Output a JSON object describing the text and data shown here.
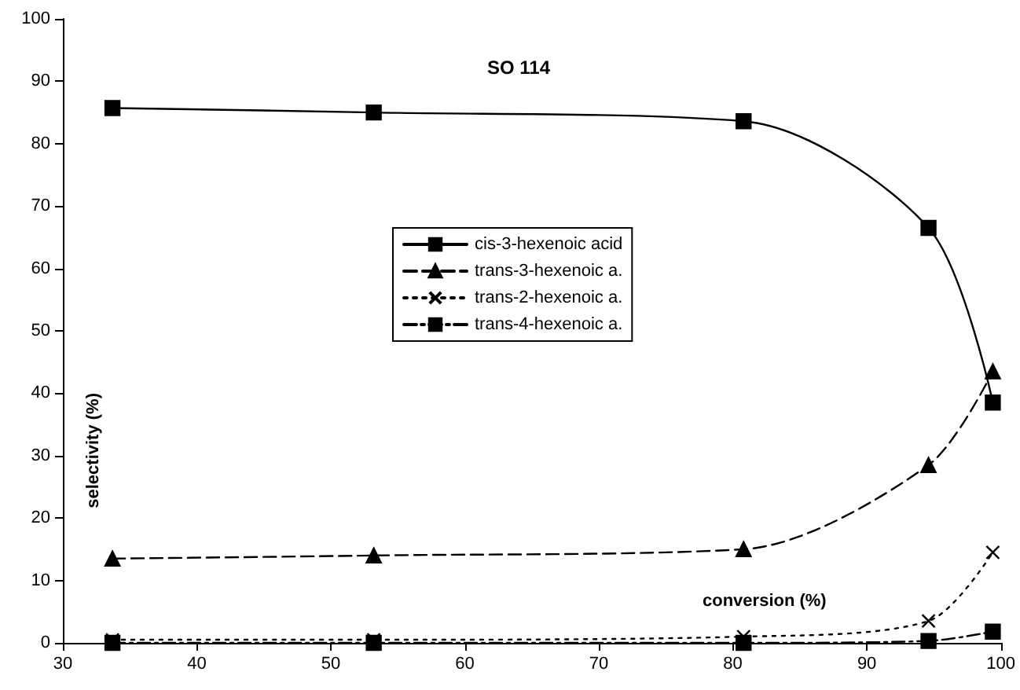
{
  "chart_data": {
    "type": "line",
    "title": "SO 114",
    "xlabel": "conversion (%)",
    "ylabel": "selectivity (%)",
    "x": [
      33.7,
      53.2,
      80.8,
      94.6,
      99.4
    ],
    "series": [
      {
        "name": "cis-3-hexenoic acid",
        "color": "#000000",
        "marker": "square",
        "line_style": "solid",
        "values": [
          85.7,
          85.0,
          83.6,
          66.5,
          38.5
        ]
      },
      {
        "name": "trans-3-hexenoic a.",
        "color": "#000000",
        "marker": "triangle",
        "line_style": "dashed",
        "values": [
          13.5,
          14.0,
          15.0,
          28.5,
          43.5
        ]
      },
      {
        "name": "trans-2-hexenoic a.",
        "color": "#000000",
        "marker": "cross",
        "line_style": "dotted",
        "values": [
          0.5,
          0.5,
          1.0,
          3.5,
          14.5
        ]
      },
      {
        "name": "trans-4-hexenoic a.",
        "color": "#000000",
        "marker": "square",
        "line_style": "dashdot",
        "values": [
          0,
          0,
          0,
          0.3,
          1.8
        ]
      }
    ],
    "xlim": [
      30,
      100
    ],
    "xticks": [
      30,
      40,
      50,
      60,
      70,
      80,
      90,
      100
    ],
    "ylim": [
      0,
      100
    ],
    "yticks": [
      0,
      10,
      20,
      30,
      40,
      50,
      60,
      70,
      80,
      90,
      100
    ],
    "grid": false,
    "legend": "center"
  }
}
